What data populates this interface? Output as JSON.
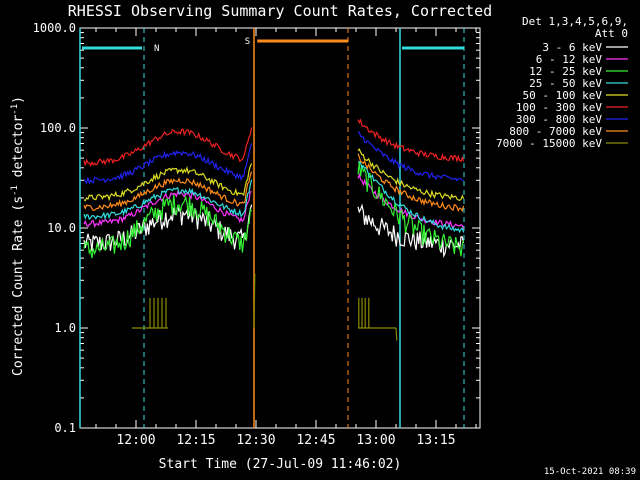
{
  "chart_data": {
    "type": "line",
    "title": "RHESSI Observing Summary Count Rates, Corrected",
    "xlabel": "Start Time (27-Jul-09 11:46:02)",
    "ylabel_main": "Corrected Count Rate (s",
    "ylabel_sup1": "-1",
    "ylabel_mid": " detector",
    "ylabel_sup2": "-1",
    "ylabel_end": ")",
    "yscale": "log",
    "ylim": [
      0.1,
      1000
    ],
    "xlim_minutes": [
      0,
      100
    ],
    "x_ticks": [
      {
        "label": "12:00",
        "min": 14
      },
      {
        "label": "12:15",
        "min": 29
      },
      {
        "label": "12:30",
        "min": 44
      },
      {
        "label": "12:45",
        "min": 59
      },
      {
        "label": "13:00",
        "min": 74
      },
      {
        "label": "13:15",
        "min": 89
      }
    ],
    "y_ticks": [
      {
        "label": "1000.0",
        "v": 1000
      },
      {
        "label": "100.0",
        "v": 100
      },
      {
        "label": "10.0",
        "v": 10
      },
      {
        "label": "1.0",
        "v": 1
      },
      {
        "label": "0.1",
        "v": 0.1
      }
    ],
    "legend_header": [
      "Det 1,3,4,5,6,9,",
      "Att 0"
    ],
    "series": [
      {
        "name": "3 - 6 keV",
        "color": "#ffffff",
        "level": 7,
        "peak": 14,
        "post_start": 15,
        "post_end": 6.5,
        "noisy": true
      },
      {
        "name": "6 - 12 keV",
        "color": "#ff33ff",
        "level": 11,
        "peak": 22,
        "post_start": 33,
        "post_end": 10,
        "noisy": false
      },
      {
        "name": "12 - 25 keV",
        "color": "#33ee33",
        "level": 6,
        "peak": 18,
        "post_start": 40,
        "post_end": 5.5,
        "noisy": true
      },
      {
        "name": "25 - 50 keV",
        "color": "#33dddd",
        "level": 13,
        "peak": 24,
        "post_start": 48,
        "post_end": 8.5,
        "noisy": false
      },
      {
        "name": "50 - 100 keV",
        "color": "#dddd22",
        "level": 20,
        "peak": 38,
        "post_start": 60,
        "post_end": 19,
        "noisy": false
      },
      {
        "name": "100 - 300 keV",
        "color": "#ee2222",
        "level": 45,
        "peak": 92,
        "post_start": 120,
        "post_end": 48,
        "noisy": false
      },
      {
        "name": "300 - 800 keV",
        "color": "#2222ee",
        "level": 30,
        "peak": 57,
        "post_start": 90,
        "post_end": 29,
        "noisy": false
      },
      {
        "name": "800 - 7000 keV",
        "color": "#ff8c1a",
        "level": 16,
        "peak": 30,
        "post_start": 52,
        "post_end": 15,
        "noisy": false
      },
      {
        "name": "7000 - 15000 keV",
        "color": "#8b8b00",
        "level": 1,
        "peak": 1,
        "post_start": 1,
        "post_end": 1,
        "noisy": false
      }
    ],
    "flag_labels": {
      "night": "N",
      "saa": "S"
    },
    "footer": "15-Oct-2021 08:39"
  }
}
